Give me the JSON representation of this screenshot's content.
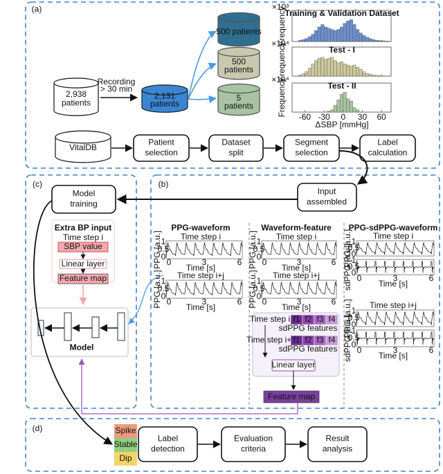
{
  "panel_a": {
    "label": "(a)",
    "source": [
      "2,938",
      "patients"
    ],
    "recording": [
      "Recording",
      "> 30 min"
    ],
    "selected": [
      "2,131",
      "patients"
    ],
    "splits": [
      [
        "500 patients"
      ],
      [
        "500",
        "patients"
      ],
      [
        "5",
        "patients"
      ]
    ],
    "histograms": {
      "y_label": "Frequency",
      "x_label": "ΔSBP [mmHg]",
      "xlim": [
        -80,
        75
      ],
      "xticks": [
        -60,
        -30,
        0,
        30,
        60
      ],
      "ylim": [
        0,
        1
      ],
      "bins": [
        -70,
        -65,
        -60,
        -55,
        -50,
        -45,
        -40,
        -35,
        -30,
        -25,
        -20,
        -15,
        -10,
        -5,
        0,
        5,
        10,
        15,
        20,
        25,
        30,
        35,
        40,
        45,
        50,
        55,
        60,
        65,
        70,
        75
      ],
      "panels": [
        {
          "title": "Training & Validation Dataset",
          "scale": "×10³",
          "color": "#6b8fcb",
          "heights": [
            0.05,
            0.08,
            0.12,
            0.2,
            0.3,
            0.45,
            0.6,
            0.7,
            0.6,
            0.55,
            0.5,
            0.45,
            0.5,
            0.6,
            0.75,
            0.85,
            0.9,
            0.7,
            0.5,
            0.35,
            0.25,
            0.18,
            0.12,
            0.08,
            0.05,
            0.04,
            0.03,
            0.02,
            0.01
          ]
        },
        {
          "title": "Test - I",
          "scale": "×10⁴",
          "color": "#cbc79c",
          "heights": [
            0.05,
            0.1,
            0.2,
            0.35,
            0.55,
            0.7,
            0.8,
            0.85,
            0.75,
            0.8,
            0.85,
            0.7,
            0.6,
            0.65,
            0.55,
            0.5,
            0.45,
            0.5,
            0.4,
            0.3,
            0.2,
            0.12,
            0.08,
            0.05,
            0.03,
            0.02,
            0.01,
            0.01,
            0.01
          ]
        },
        {
          "title": "Test - II",
          "scale": "×10⁴",
          "color": "#a8c29e",
          "heights": [
            0,
            0,
            0,
            0,
            0,
            0,
            0,
            0,
            0,
            0.05,
            0.1,
            0.3,
            0.55,
            0.8,
            0.9,
            0.6,
            0.5,
            0.2,
            0.1,
            0,
            0,
            0,
            0,
            0,
            0,
            0,
            0,
            0,
            0
          ]
        }
      ]
    },
    "pipeline": [
      [
        "VitalDB"
      ],
      [
        "Patient",
        "selection"
      ],
      [
        "Dataset",
        "split"
      ],
      [
        "Segment",
        "selection"
      ],
      [
        "Label",
        "calculation"
      ]
    ]
  },
  "panel_b": {
    "label": "(b)",
    "input": [
      "Input",
      "assembled"
    ],
    "time_label": "Time [s]",
    "time_ticks": [
      0,
      3,
      6
    ],
    "amp_ticks": [
      0,
      0.5,
      1
    ],
    "ppg_label": "PPG [a.u.]",
    "sdppg_label": "sdPPG [a.u.]",
    "columns": [
      {
        "title": "PPG-waveform",
        "steps": [
          "Time step i",
          "Time step i+j"
        ]
      },
      {
        "title": "Waveform-feature",
        "steps": [
          "Time step i",
          "Time step i+j"
        ]
      },
      {
        "title": "PPG-sdPPG-waveform",
        "steps": [
          "Time step i",
          "Time step i+j"
        ]
      }
    ],
    "feature_box": {
      "rows": [
        {
          "step": "Time step i",
          "features": [
            "f1",
            "f2",
            "f3",
            "f4"
          ],
          "caption": "sdPPG features"
        },
        {
          "step": "Time step i+j",
          "features": [
            "f1",
            "f2",
            "f3",
            "f4"
          ],
          "caption": "sdPPG features"
        }
      ],
      "linear": "Linear layer",
      "feature_map": "Feature map"
    }
  },
  "panel_c": {
    "label": "(c)",
    "training": [
      "Model",
      "training"
    ],
    "extra": {
      "title": "Extra BP input",
      "step": "Time step i",
      "sbp": "SBP value",
      "linear": "Linear layer",
      "feature_map": "Feature map"
    },
    "model": "Model"
  },
  "panel_d": {
    "label": "(d)",
    "states": [
      "Spike",
      "Stable",
      "Dip"
    ],
    "steps": [
      [
        "Label",
        "detection"
      ],
      [
        "Evaluation",
        "criteria"
      ],
      [
        "Result",
        "analysis"
      ]
    ]
  }
}
